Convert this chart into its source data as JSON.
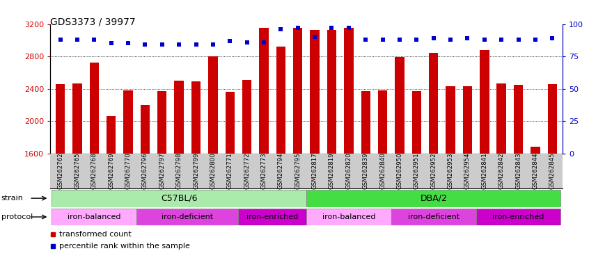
{
  "title": "GDS3373 / 39977",
  "samples": [
    "GSM262762",
    "GSM262765",
    "GSM262768",
    "GSM262769",
    "GSM262770",
    "GSM262796",
    "GSM262797",
    "GSM262798",
    "GSM262799",
    "GSM262800",
    "GSM262771",
    "GSM262772",
    "GSM262773",
    "GSM262794",
    "GSM262795",
    "GSM262817",
    "GSM262819",
    "GSM262820",
    "GSM262839",
    "GSM262840",
    "GSM262950",
    "GSM262951",
    "GSM262952",
    "GSM262953",
    "GSM262954",
    "GSM262841",
    "GSM262842",
    "GSM262843",
    "GSM262844",
    "GSM262845"
  ],
  "red_values": [
    2460,
    2470,
    2720,
    2060,
    2380,
    2200,
    2370,
    2500,
    2490,
    2800,
    2360,
    2510,
    3150,
    2920,
    3150,
    3130,
    3130,
    3150,
    2370,
    2380,
    2790,
    2370,
    2840,
    2430,
    2430,
    2880,
    2470,
    2450,
    1680,
    2460
  ],
  "blue_values": [
    88,
    88,
    88,
    85,
    85,
    84,
    84,
    84,
    84,
    84,
    87,
    86,
    86,
    96,
    97,
    90,
    97,
    97,
    88,
    88,
    88,
    88,
    89,
    88,
    89,
    88,
    88,
    88,
    88,
    89
  ],
  "ymin": 1600,
  "ymax": 3200,
  "yticks_left": [
    1600,
    2000,
    2400,
    2800,
    3200
  ],
  "yticks_right": [
    0,
    25,
    50,
    75,
    100
  ],
  "grid_values": [
    2000,
    2400,
    2800
  ],
  "strain_groups": [
    {
      "label": "C57BL/6",
      "start": 0,
      "end": 14,
      "color": "#aaeaaa"
    },
    {
      "label": "DBA/2",
      "start": 15,
      "end": 29,
      "color": "#44dd44"
    }
  ],
  "protocol_groups": [
    {
      "label": "iron-balanced",
      "start": 0,
      "end": 4,
      "color": "#ffaaff"
    },
    {
      "label": "iron-deficient",
      "start": 5,
      "end": 10,
      "color": "#dd44dd"
    },
    {
      "label": "iron-enriched",
      "start": 11,
      "end": 14,
      "color": "#cc00cc"
    },
    {
      "label": "iron-balanced",
      "start": 15,
      "end": 19,
      "color": "#ffaaff"
    },
    {
      "label": "iron-deficient",
      "start": 20,
      "end": 24,
      "color": "#dd44dd"
    },
    {
      "label": "iron-enriched",
      "start": 25,
      "end": 29,
      "color": "#cc00cc"
    }
  ],
  "bar_color": "#cc0000",
  "dot_color": "#0000cc",
  "background_color": "#ffffff",
  "xlabel_bg_color": "#cccccc",
  "title_fontsize": 10,
  "tick_fontsize": 8,
  "label_fontsize": 8
}
